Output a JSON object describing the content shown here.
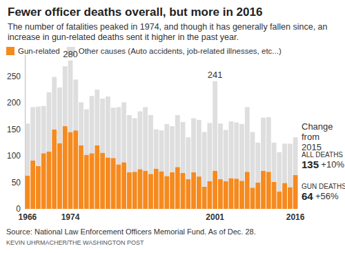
{
  "chart_data": {
    "type": "bar",
    "title": "Fewer officer deaths overall, but more in 2016",
    "subtitle": "The number of fatalities peaked in 1974, and though it has generally fallen since, an increase in gun-related deaths sent it higher in the past year.",
    "stacked": true,
    "grid": false,
    "legend": "top-left",
    "categories": [
      "1966",
      null,
      null,
      null,
      null,
      null,
      null,
      null,
      "1974",
      null,
      null,
      null,
      null,
      null,
      null,
      null,
      null,
      null,
      null,
      null,
      null,
      null,
      null,
      null,
      null,
      null,
      null,
      null,
      null,
      null,
      null,
      null,
      null,
      null,
      null,
      "2001",
      null,
      null,
      null,
      null,
      null,
      null,
      null,
      null,
      null,
      null,
      null,
      null,
      null,
      null,
      "2016"
    ],
    "series": [
      {
        "name": "Gun-related",
        "color": "#f58a1f",
        "values": [
          63,
          91,
          81,
          105,
          108,
          150,
          124,
          156,
          145,
          148,
          120,
          102,
          105,
          120,
          106,
          97,
          96,
          84,
          88,
          69,
          70,
          75,
          72,
          66,
          76,
          71,
          62,
          69,
          79,
          68,
          56,
          69,
          61,
          42,
          52,
          72,
          56,
          52,
          58,
          57,
          53,
          70,
          40,
          50,
          72,
          70,
          51,
          33,
          49,
          41,
          64
        ]
      },
      {
        "name": "Other causes (Auto accidents, job-related illnesses, etc...)",
        "color": "#dedede",
        "values": [
          98,
          101,
          112,
          89,
          112,
          99,
          105,
          113,
          135,
          96,
          81,
          86,
          108,
          105,
          102,
          115,
          95,
          108,
          113,
          108,
          101,
          109,
          120,
          111,
          74,
          77,
          98,
          87,
          98,
          96,
          79,
          102,
          107,
          103,
          110,
          169,
          105,
          97,
          107,
          106,
          107,
          122,
          105,
          75,
          100,
          103,
          74,
          74,
          74,
          82,
          71
        ]
      }
    ],
    "ylim": [
      0,
      290
    ],
    "yticks": [
      0,
      50,
      100,
      150,
      200,
      250
    ],
    "annotations": [
      {
        "text": "280",
        "category": "1974"
      },
      {
        "text": "241",
        "category": "2001"
      }
    ],
    "side_panel": {
      "title": "Change from 2015",
      "items": [
        {
          "label": "ALL DEATHS",
          "value": 135,
          "change": "+10%"
        },
        {
          "label": "GUN DEATHS",
          "value": 64,
          "change": "+56%"
        }
      ]
    },
    "source": "Source: National Law Enforcement Officers Memorial Fund. As of Dec. 28.",
    "credit": "KEVIN UHRMACHER/THE WASHINGTON POST"
  }
}
